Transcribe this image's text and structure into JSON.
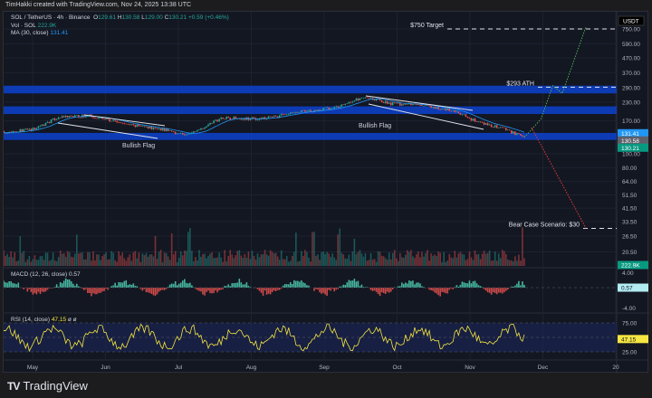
{
  "header": {
    "credit": "TimHakki created with TradingView.com, Nov 24, 2025 13:38 UTC"
  },
  "legend": {
    "symbol": "SOL / TetherUS · 4h · Binance",
    "o_label": "O",
    "o": "129.61",
    "h_label": "H",
    "h": "130.58",
    "l_label": "L",
    "l": "129.00",
    "c_label": "C",
    "c": "130.21",
    "change": "+0.59 (+0.46%)",
    "vol_label": "Vol · SOL",
    "vol": "222.9K",
    "ma_label": "MA (30, close)",
    "ma": "131.41",
    "macd_label": "MACD (12, 26, close)",
    "macd": "0.57",
    "rsi_label": "RSI (14, close)",
    "rsi": "47.15",
    "rsi_icons": "ø ø"
  },
  "currency": "USDT",
  "footer": {
    "brand": "TradingView",
    "logo": "17"
  },
  "colors": {
    "up": "#26a69a",
    "down": "#ef5350",
    "zone": "#0d3fc4",
    "ma": "#2196f3",
    "rsi": "#f5e642",
    "bull_proj": "#4caf50",
    "bear_proj": "#e53935"
  },
  "chart_data": [
    {
      "type": "candlestick",
      "title": "SOL / TetherUS · 4h · Binance",
      "scale": "log",
      "y_ticks": [
        "750.00",
        "590.00",
        "470.00",
        "370.00",
        "290.00",
        "230.00",
        "170.00",
        "100.00",
        "80.00",
        "64.00",
        "51.50",
        "41.50",
        "33.50",
        "26.50",
        "20.50"
      ],
      "y_tick_values": [
        750,
        590,
        470,
        370,
        290,
        230,
        170,
        100,
        80,
        64,
        51.5,
        41.5,
        33.5,
        26.5,
        20.5
      ],
      "x_ticks": [
        "May",
        "Jun",
        "Jul",
        "Aug",
        "Sep",
        "Oct",
        "Nov",
        "Dec",
        "20"
      ],
      "price_path": {
        "dates": [
          "2025-04-15",
          "2025-05-01",
          "2025-05-12",
          "2025-05-25",
          "2025-06-10",
          "2025-06-25",
          "2025-07-05",
          "2025-07-20",
          "2025-08-05",
          "2025-08-20",
          "2025-09-05",
          "2025-09-18",
          "2025-09-28",
          "2025-10-10",
          "2025-10-25",
          "2025-11-05",
          "2025-11-15",
          "2025-11-24"
        ],
        "close": [
          140,
          148,
          180,
          185,
          160,
          148,
          135,
          180,
          175,
          195,
          210,
          252,
          225,
          220,
          200,
          165,
          150,
          130.21
        ]
      },
      "price_labels": [
        {
          "label": "MA",
          "value": "131.41"
        },
        {
          "label": "high",
          "value": "130.58"
        },
        {
          "label": "close",
          "value": "130.21"
        }
      ],
      "zones": [
        {
          "low": 265,
          "high": 300
        },
        {
          "low": 190,
          "high": 215
        },
        {
          "low": 125,
          "high": 140
        }
      ],
      "levels": [
        {
          "text": "$750 Target",
          "value": 750
        },
        {
          "text": "$293 ATH",
          "value": 293
        },
        {
          "text": "Bear Case Scenario: $30",
          "value": 30
        }
      ],
      "annotations": [
        {
          "text": "Bullish Flag",
          "date": "2025-06-15"
        },
        {
          "text": "Bullish Flag",
          "date": "2025-09-28"
        }
      ],
      "projections": [
        {
          "kind": "bull",
          "dates": [
            "2025-11-24",
            "2025-12-01",
            "2025-12-06",
            "2025-12-10",
            "2025-12-20"
          ],
          "values": [
            130,
            175,
            300,
            265,
            780
          ]
        },
        {
          "kind": "bear",
          "dates": [
            "2025-11-27",
            "2025-12-20"
          ],
          "values": [
            153,
            30
          ]
        }
      ]
    },
    {
      "type": "bar",
      "title": "Vol · SOL",
      "last": "222.9K"
    },
    {
      "type": "histogram",
      "title": "MACD (12, 26, close)",
      "y_ticks": [
        "4.00",
        "-4.00"
      ],
      "y_tick_values": [
        4,
        -4
      ],
      "last": "0.57"
    },
    {
      "type": "line",
      "title": "RSI (14, close)",
      "y_ticks": [
        "75.00",
        "25.00"
      ],
      "y_tick_values": [
        75,
        25
      ],
      "band": [
        30,
        70
      ],
      "last": "47.15"
    }
  ]
}
